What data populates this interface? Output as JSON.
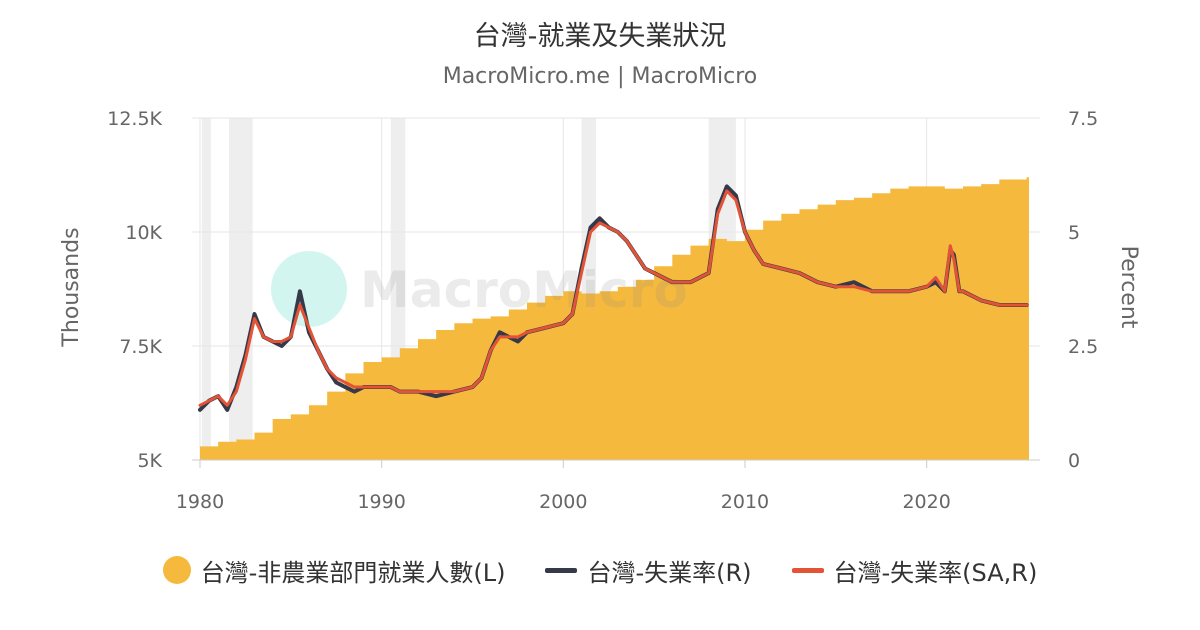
{
  "header": {
    "title": "台灣-就業及失業狀況",
    "subtitle": "MacroMicro.me | MacroMicro"
  },
  "watermark": {
    "text": "MacroMicro"
  },
  "colors": {
    "employment": "#f5b93e",
    "unemployment": "#36394a",
    "unemployment_sa": "#e35336",
    "recession": "#eeeeee",
    "grid": "#e6e6e6",
    "watermark_icon": "#5ee0c4"
  },
  "chart_data": {
    "type": "area",
    "x_axis": {
      "range": [
        1980,
        2025.8
      ],
      "ticks": [
        "1980",
        "1990",
        "2000",
        "2010",
        "2020"
      ],
      "tick_values": [
        1980,
        1990,
        2000,
        2010,
        2020
      ]
    },
    "y_left": {
      "label": "Thousands",
      "range": [
        5000,
        12500
      ],
      "ticks": [
        "5K",
        "7.5K",
        "10K",
        "12.5K"
      ],
      "tick_values": [
        5000,
        7500,
        10000,
        12500
      ]
    },
    "y_right": {
      "label": "Percent",
      "range": [
        0,
        7.5
      ],
      "ticks": [
        "0",
        "2.5",
        "5",
        "7.5"
      ],
      "tick_values": [
        0,
        2.5,
        5,
        7.5
      ]
    },
    "grid": true,
    "legend_position": "bottom",
    "recession_bands": [
      [
        1980.1,
        1980.6
      ],
      [
        1981.6,
        1982.9
      ],
      [
        1990.5,
        1991.3
      ],
      [
        2001.0,
        2001.8
      ],
      [
        2008.0,
        2009.5
      ]
    ],
    "series": [
      {
        "name": "台灣-非農業部門就業人數(L)",
        "axis": "left",
        "kind": "area",
        "x": [
          1980,
          1981,
          1982,
          1983,
          1984,
          1985,
          1986,
          1987,
          1988,
          1989,
          1990,
          1991,
          1992,
          1993,
          1994,
          1995,
          1996,
          1997,
          1998,
          1999,
          2000,
          2001,
          2002,
          2003,
          2004,
          2005,
          2006,
          2007,
          2008,
          2009,
          2010,
          2011,
          2012,
          2013,
          2014,
          2015,
          2016,
          2017,
          2018,
          2019,
          2020,
          2021,
          2022,
          2023,
          2024,
          2025.5
        ],
        "y": [
          5300,
          5400,
          5450,
          5600,
          5900,
          6000,
          6200,
          6500,
          6900,
          7150,
          7250,
          7450,
          7650,
          7850,
          8000,
          8100,
          8150,
          8300,
          8450,
          8600,
          8700,
          8650,
          8700,
          8800,
          8950,
          9250,
          9500,
          9700,
          9850,
          9800,
          10050,
          10250,
          10400,
          10500,
          10600,
          10700,
          10750,
          10850,
          10950,
          11000,
          11000,
          10950,
          11000,
          11050,
          11150,
          11200
        ]
      },
      {
        "name": "台灣-失業率(R)",
        "axis": "right",
        "kind": "line",
        "x": [
          1980,
          1980.5,
          1981,
          1981.5,
          1982,
          1982.5,
          1983,
          1983.5,
          1984,
          1984.5,
          1985,
          1985.5,
          1986,
          1986.5,
          1987,
          1987.5,
          1988,
          1988.5,
          1989,
          1989.5,
          1990,
          1990.5,
          1991,
          1991.5,
          1992,
          1993,
          1994,
          1995,
          1995.5,
          1996,
          1996.5,
          1997,
          1997.5,
          1998,
          1999,
          2000,
          2000.5,
          2001,
          2001.5,
          2002,
          2002.5,
          2003,
          2003.5,
          2004,
          2004.5,
          2005,
          2006,
          2007,
          2008,
          2008.5,
          2009,
          2009.5,
          2010,
          2010.5,
          2011,
          2012,
          2013,
          2014,
          2015,
          2016,
          2017,
          2018,
          2019,
          2020,
          2020.5,
          2021,
          2021.3,
          2021.5,
          2021.8,
          2022,
          2023,
          2024,
          2025,
          2025.5
        ],
        "y": [
          1.1,
          1.3,
          1.4,
          1.1,
          1.6,
          2.3,
          3.2,
          2.7,
          2.6,
          2.5,
          2.7,
          3.7,
          2.8,
          2.4,
          2.0,
          1.7,
          1.6,
          1.5,
          1.6,
          1.6,
          1.6,
          1.6,
          1.5,
          1.5,
          1.5,
          1.4,
          1.5,
          1.6,
          1.8,
          2.4,
          2.8,
          2.7,
          2.6,
          2.8,
          2.9,
          3.0,
          3.2,
          4.2,
          5.1,
          5.3,
          5.1,
          5.0,
          4.8,
          4.5,
          4.2,
          4.1,
          3.9,
          3.9,
          4.1,
          5.5,
          6.0,
          5.8,
          5.0,
          4.6,
          4.3,
          4.2,
          4.1,
          3.9,
          3.8,
          3.9,
          3.7,
          3.7,
          3.7,
          3.8,
          3.9,
          3.7,
          4.6,
          4.5,
          3.7,
          3.7,
          3.5,
          3.4,
          3.4,
          3.4
        ]
      },
      {
        "name": "台灣-失業率(SA,R)",
        "axis": "right",
        "kind": "line",
        "x": [
          1980,
          1980.5,
          1981,
          1981.5,
          1982,
          1982.5,
          1983,
          1983.5,
          1984,
          1984.5,
          1985,
          1985.5,
          1986,
          1986.5,
          1987,
          1987.5,
          1988,
          1988.5,
          1989,
          1989.5,
          1990,
          1990.5,
          1991,
          1991.5,
          1992,
          1993,
          1994,
          1995,
          1995.5,
          1996,
          1996.5,
          1997,
          1997.5,
          1998,
          1999,
          2000,
          2000.5,
          2001,
          2001.5,
          2002,
          2002.5,
          2003,
          2003.5,
          2004,
          2004.5,
          2005,
          2006,
          2007,
          2008,
          2008.5,
          2009,
          2009.5,
          2010,
          2010.5,
          2011,
          2012,
          2013,
          2014,
          2015,
          2016,
          2017,
          2018,
          2019,
          2020,
          2020.5,
          2021,
          2021.3,
          2021.5,
          2021.8,
          2022,
          2023,
          2024,
          2025,
          2025.5
        ],
        "y": [
          1.2,
          1.3,
          1.4,
          1.2,
          1.5,
          2.2,
          3.1,
          2.7,
          2.6,
          2.6,
          2.7,
          3.4,
          2.9,
          2.4,
          2.0,
          1.8,
          1.7,
          1.6,
          1.6,
          1.6,
          1.6,
          1.6,
          1.5,
          1.5,
          1.5,
          1.5,
          1.5,
          1.6,
          1.8,
          2.4,
          2.7,
          2.7,
          2.7,
          2.8,
          2.9,
          3.0,
          3.2,
          4.1,
          5.0,
          5.2,
          5.1,
          5.0,
          4.8,
          4.5,
          4.2,
          4.1,
          3.9,
          3.9,
          4.1,
          5.4,
          5.9,
          5.7,
          5.0,
          4.6,
          4.3,
          4.2,
          4.1,
          3.9,
          3.8,
          3.8,
          3.7,
          3.7,
          3.7,
          3.8,
          4.0,
          3.7,
          4.7,
          4.4,
          3.7,
          3.7,
          3.5,
          3.4,
          3.4,
          3.4
        ]
      }
    ]
  }
}
